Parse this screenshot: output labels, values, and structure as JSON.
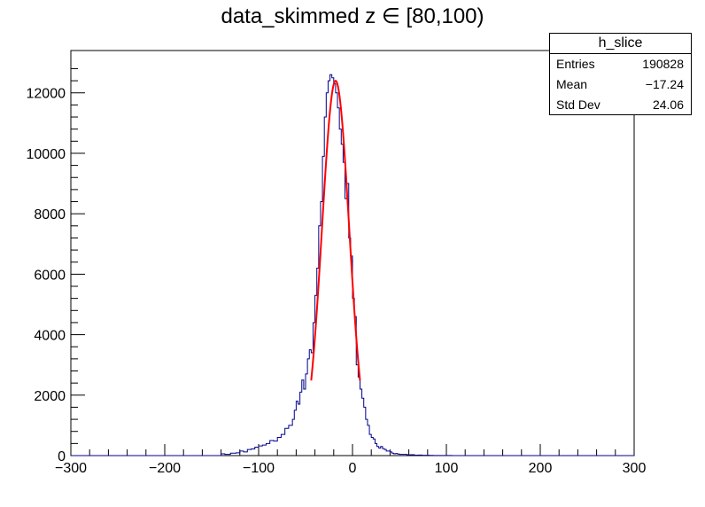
{
  "title": "data_skimmed z  ∈ [80,100)",
  "stats": {
    "name": "h_slice",
    "entries_label": "Entries",
    "entries_value": "190828",
    "mean_label": "Mean",
    "mean_value": "−17.24",
    "stddev_label": "Std Dev",
    "stddev_value": "24.06"
  },
  "colors": {
    "histogram": "#00008b",
    "fit": "#ff0000",
    "frame": "#000000"
  },
  "chart_data": {
    "type": "histogram",
    "title": "data_skimmed z  ∈ [80,100)",
    "xlim": [
      -300,
      300
    ],
    "ylim": [
      0,
      13400
    ],
    "x_ticks": [
      -300,
      -200,
      -100,
      0,
      100,
      200,
      300
    ],
    "x_tick_labels": [
      "−300",
      "−200",
      "−100",
      "0",
      "100",
      "200",
      "300"
    ],
    "y_ticks": [
      0,
      2000,
      4000,
      6000,
      8000,
      10000,
      12000
    ],
    "y_tick_labels": [
      "0",
      "2000",
      "4000",
      "6000",
      "8000",
      "10000",
      "12000"
    ],
    "grid": false,
    "legend": "stats box top-right",
    "histogram": {
      "bin_width": 2,
      "x": [
        -140,
        -136,
        -130,
        -124,
        -120,
        -116,
        -112,
        -108,
        -104,
        -100,
        -96,
        -92,
        -88,
        -84,
        -80,
        -76,
        -72,
        -68,
        -64,
        -62,
        -60,
        -58,
        -56,
        -54,
        -52,
        -50,
        -48,
        -46,
        -44,
        -42,
        -40,
        -38,
        -36,
        -34,
        -32,
        -30,
        -28,
        -26,
        -24,
        -22,
        -20,
        -18,
        -16,
        -14,
        -12,
        -10,
        -8,
        -6,
        -4,
        -2,
        0,
        2,
        4,
        6,
        8,
        10,
        12,
        14,
        16,
        18,
        20,
        22,
        24,
        26,
        28,
        30,
        32,
        34,
        36,
        38,
        40,
        42,
        44,
        46,
        48,
        50,
        54,
        58,
        62,
        66,
        70,
        74,
        78,
        82,
        86,
        92,
        98,
        104
      ],
      "counts": [
        60,
        40,
        80,
        90,
        150,
        120,
        200,
        220,
        280,
        320,
        350,
        400,
        500,
        480,
        600,
        700,
        900,
        1000,
        1200,
        1500,
        1800,
        1700,
        2100,
        2500,
        2200,
        2700,
        3200,
        3500,
        3400,
        4400,
        5300,
        6200,
        7600,
        8400,
        9900,
        11200,
        12000,
        12400,
        12600,
        12500,
        12300,
        12000,
        11500,
        10800,
        10300,
        9700,
        8500,
        9000,
        7200,
        6600,
        5200,
        4600,
        3000,
        2600,
        2200,
        1900,
        1600,
        1200,
        1000,
        700,
        600,
        550,
        400,
        300,
        250,
        300,
        230,
        200,
        150,
        150,
        120,
        80,
        60,
        70,
        50,
        40,
        40,
        25,
        30,
        15,
        20,
        10,
        10,
        8,
        5,
        5,
        3,
        2
      ]
    },
    "fit": {
      "function": "gaussian",
      "range": [
        -44,
        8
      ],
      "amplitude": 12400,
      "mean": -18,
      "sigma": 14.5
    }
  }
}
